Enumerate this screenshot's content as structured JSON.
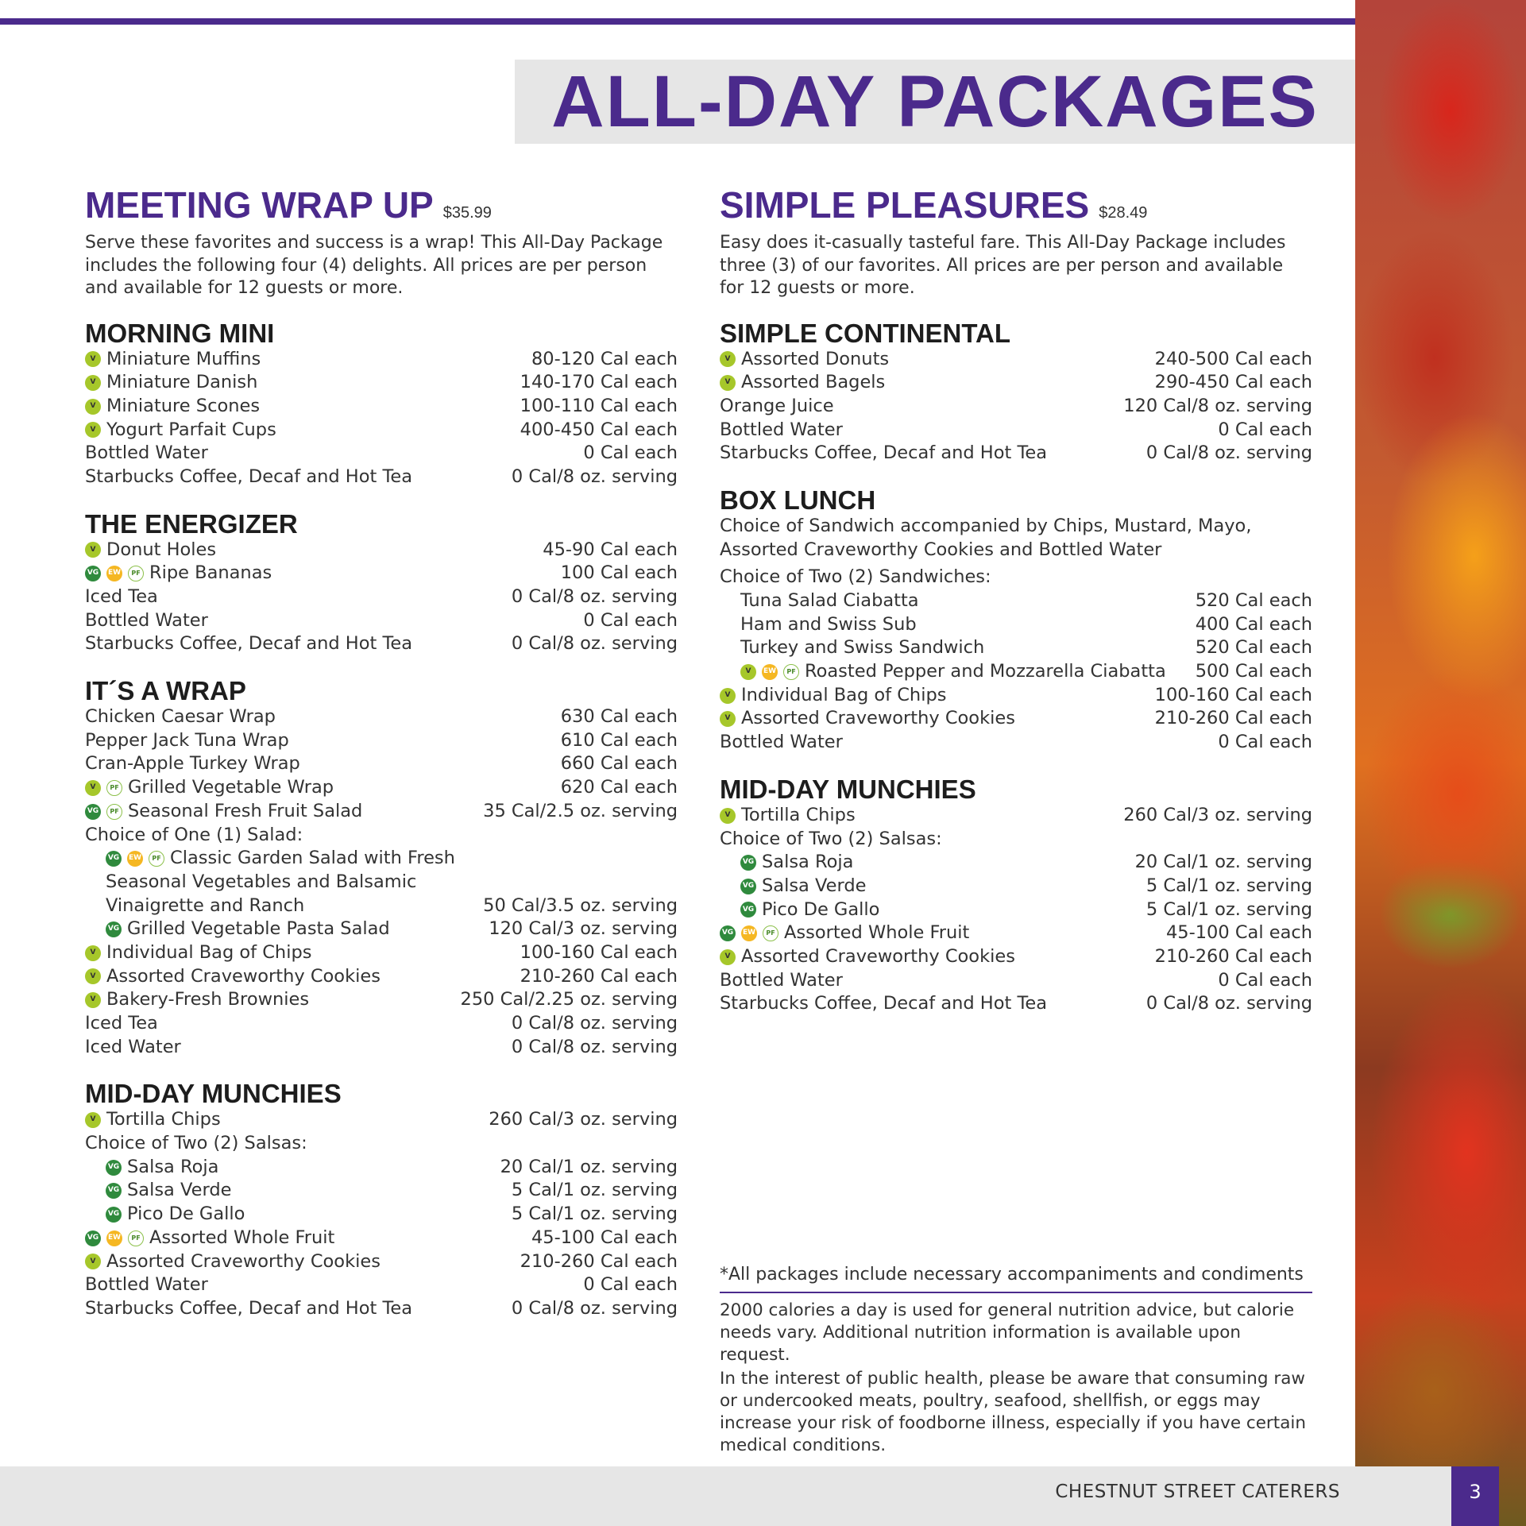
{
  "title": "ALL-DAY PACKAGES",
  "colors": {
    "brand_purple": "#4b2a8c",
    "vegetarian_badge": "#a6c72a",
    "vegan_badge": "#2f8a3d",
    "eat_well_badge": "#f5b722"
  },
  "icon_legend": {
    "v": "vegetarian-icon",
    "vg": "vegan-icon",
    "ew": "eat-well-icon",
    "pf": "plant-forward-icon"
  },
  "icon_text": {
    "v": "V",
    "vg": "VG",
    "ew": "EW",
    "pf": "PF"
  },
  "columns": [
    {
      "package": "MEETING WRAP UP",
      "price": "$35.99",
      "description": "Serve these favorites and success is a wrap! This All-Day Package includes the following four (4) delights. All prices are per person and available for 12 guests or more.",
      "sections": [
        {
          "heading": "MORNING MINI",
          "rows": [
            {
              "name": "Miniature Muffins",
              "cal": "80-120 Cal each",
              "icons": [
                "v"
              ]
            },
            {
              "name": "Miniature Danish",
              "cal": "140-170 Cal each",
              "icons": [
                "v"
              ]
            },
            {
              "name": "Miniature Scones",
              "cal": "100-110 Cal each",
              "icons": [
                "v"
              ]
            },
            {
              "name": "Yogurt Parfait Cups",
              "cal": "400-450 Cal each",
              "icons": [
                "v"
              ]
            },
            {
              "name": "Bottled Water",
              "cal": "0 Cal each",
              "icons": []
            },
            {
              "name": "Starbucks Coffee, Decaf and Hot Tea",
              "cal": "0 Cal/8 oz. serving",
              "icons": []
            }
          ]
        },
        {
          "heading": "THE ENERGIZER",
          "rows": [
            {
              "name": "Donut Holes",
              "cal": "45-90 Cal each",
              "icons": [
                "v"
              ]
            },
            {
              "name": "Ripe Bananas",
              "cal": "100 Cal each",
              "icons": [
                "vg",
                "ew",
                "pf"
              ]
            },
            {
              "name": "Iced Tea",
              "cal": "0 Cal/8 oz. serving",
              "icons": []
            },
            {
              "name": "Bottled Water",
              "cal": "0 Cal each",
              "icons": []
            },
            {
              "name": "Starbucks Coffee, Decaf and Hot Tea",
              "cal": "0 Cal/8 oz. serving",
              "icons": []
            }
          ]
        },
        {
          "heading": "IT´S A WRAP",
          "rows": [
            {
              "name": "Chicken Caesar Wrap",
              "cal": "630 Cal each",
              "icons": []
            },
            {
              "name": "Pepper Jack Tuna Wrap",
              "cal": "610 Cal each",
              "icons": []
            },
            {
              "name": "Cran-Apple Turkey Wrap",
              "cal": "660 Cal each",
              "icons": []
            },
            {
              "name": "Grilled Vegetable Wrap",
              "cal": "620 Cal each",
              "icons": [
                "v",
                "pf"
              ]
            },
            {
              "name": "Seasonal Fresh Fruit Salad",
              "cal": "35 Cal/2.5 oz. serving",
              "icons": [
                "vg",
                "pf"
              ]
            },
            {
              "name": "Choice of One (1) Salad:",
              "cal": "",
              "icons": []
            },
            {
              "name": "Classic Garden Salad with Fresh",
              "cal": "",
              "icons": [
                "vg",
                "ew",
                "pf"
              ],
              "indent": 1
            },
            {
              "name": "Seasonal Vegetables and Balsamic",
              "cal": "",
              "icons": [],
              "indent": 1
            },
            {
              "name": "Vinaigrette and Ranch",
              "cal": "50 Cal/3.5 oz. serving",
              "icons": [],
              "indent": 1
            },
            {
              "name": "Grilled Vegetable Pasta Salad",
              "cal": "120 Cal/3 oz. serving",
              "icons": [
                "vg"
              ],
              "indent": 1
            },
            {
              "name": "Individual Bag of Chips",
              "cal": "100-160 Cal each",
              "icons": [
                "v"
              ]
            },
            {
              "name": "Assorted Craveworthy Cookies",
              "cal": "210-260 Cal each",
              "icons": [
                "v"
              ]
            },
            {
              "name": "Bakery-Fresh Brownies",
              "cal": "250 Cal/2.25 oz. serving",
              "icons": [
                "v"
              ]
            },
            {
              "name": "Iced Tea",
              "cal": "0 Cal/8 oz. serving",
              "icons": []
            },
            {
              "name": "Iced Water",
              "cal": "0 Cal/8 oz. serving",
              "icons": []
            }
          ]
        },
        {
          "heading": "MID-DAY MUNCHIES",
          "rows": [
            {
              "name": "Tortilla Chips",
              "cal": "260 Cal/3 oz. serving",
              "icons": [
                "v"
              ]
            },
            {
              "name": "Choice of Two (2) Salsas:",
              "cal": "",
              "icons": []
            },
            {
              "name": "Salsa Roja",
              "cal": "20 Cal/1 oz. serving",
              "icons": [
                "vg"
              ],
              "indent": 1
            },
            {
              "name": "Salsa Verde",
              "cal": "5 Cal/1 oz. serving",
              "icons": [
                "vg"
              ],
              "indent": 1
            },
            {
              "name": "Pico De Gallo",
              "cal": "5 Cal/1 oz. serving",
              "icons": [
                "vg"
              ],
              "indent": 1
            },
            {
              "name": "Assorted Whole Fruit",
              "cal": "45-100 Cal each",
              "icons": [
                "vg",
                "ew",
                "pf"
              ]
            },
            {
              "name": "Assorted Craveworthy Cookies",
              "cal": "210-260 Cal each",
              "icons": [
                "v"
              ]
            },
            {
              "name": "Bottled Water",
              "cal": "0 Cal each",
              "icons": []
            },
            {
              "name": "Starbucks Coffee, Decaf and Hot Tea",
              "cal": "0 Cal/8 oz. serving",
              "icons": []
            }
          ]
        }
      ]
    },
    {
      "package": "SIMPLE PLEASURES",
      "price": "$28.49",
      "description": "Easy does it-casually tasteful fare. This All-Day Package includes three (3) of our favorites. All prices are per person and available for 12 guests or more.",
      "sections": [
        {
          "heading": "SIMPLE CONTINENTAL",
          "rows": [
            {
              "name": "Assorted Donuts",
              "cal": "240-500 Cal each",
              "icons": [
                "v"
              ]
            },
            {
              "name": "Assorted Bagels",
              "cal": "290-450 Cal each",
              "icons": [
                "v"
              ]
            },
            {
              "name": "Orange Juice",
              "cal": "120 Cal/8 oz. serving",
              "icons": []
            },
            {
              "name": "Bottled Water",
              "cal": "0 Cal each",
              "icons": []
            },
            {
              "name": "Starbucks Coffee, Decaf and Hot Tea",
              "cal": "0 Cal/8 oz. serving",
              "icons": []
            }
          ]
        },
        {
          "heading": "BOX LUNCH",
          "description": "Choice of Sandwich accompanied by Chips, Mustard, Mayo, Assorted Craveworthy Cookies and Bottled Water",
          "rows": [
            {
              "name": "Choice of Two (2) Sandwiches:",
              "cal": "",
              "icons": []
            },
            {
              "name": "Tuna Salad Ciabatta",
              "cal": "520 Cal each",
              "icons": [],
              "indent": 1
            },
            {
              "name": "Ham and Swiss Sub",
              "cal": "400 Cal each",
              "icons": [],
              "indent": 1
            },
            {
              "name": "Turkey and Swiss Sandwich",
              "cal": "520 Cal each",
              "icons": [],
              "indent": 1
            },
            {
              "name": "Roasted Pepper and Mozzarella Ciabatta",
              "cal": "500 Cal each",
              "icons": [
                "v",
                "ew",
                "pf"
              ],
              "indent": 1
            },
            {
              "name": "Individual Bag of Chips",
              "cal": "100-160 Cal each",
              "icons": [
                "v"
              ]
            },
            {
              "name": "Assorted Craveworthy Cookies",
              "cal": "210-260 Cal each",
              "icons": [
                "v"
              ]
            },
            {
              "name": "Bottled Water",
              "cal": "0 Cal each",
              "icons": []
            }
          ]
        },
        {
          "heading": "MID-DAY MUNCHIES",
          "rows": [
            {
              "name": "Tortilla Chips",
              "cal": "260 Cal/3 oz. serving",
              "icons": [
                "v"
              ]
            },
            {
              "name": "Choice of Two (2) Salsas:",
              "cal": "",
              "icons": []
            },
            {
              "name": "Salsa Roja",
              "cal": "20 Cal/1 oz. serving",
              "icons": [
                "vg"
              ],
              "indent": 1
            },
            {
              "name": "Salsa Verde",
              "cal": "5 Cal/1 oz. serving",
              "icons": [
                "vg"
              ],
              "indent": 1
            },
            {
              "name": "Pico De Gallo",
              "cal": "5 Cal/1 oz. serving",
              "icons": [
                "vg"
              ],
              "indent": 1
            },
            {
              "name": "Assorted Whole Fruit",
              "cal": "45-100 Cal each",
              "icons": [
                "vg",
                "ew",
                "pf"
              ]
            },
            {
              "name": "Assorted Craveworthy Cookies",
              "cal": "210-260 Cal each",
              "icons": [
                "v"
              ]
            },
            {
              "name": "Bottled Water",
              "cal": "0 Cal each",
              "icons": []
            },
            {
              "name": "Starbucks Coffee, Decaf and Hot Tea",
              "cal": "0 Cal/8 oz. serving",
              "icons": []
            }
          ]
        }
      ]
    }
  ],
  "footnote": {
    "condiments": "*All packages include necessary accompaniments and condiments",
    "calories": "2000 calories a day is used for general nutrition advice, but calorie needs vary. Additional nutrition information is available upon request.",
    "health": "In the interest of public health, please be aware that consuming raw or undercooked meats, poultry, seafood, shellfish, or eggs may increase your risk of foodborne illness, especially if you have certain medical conditions."
  },
  "footer": {
    "brand": "CHESTNUT STREET CATERERS",
    "page": "3"
  }
}
